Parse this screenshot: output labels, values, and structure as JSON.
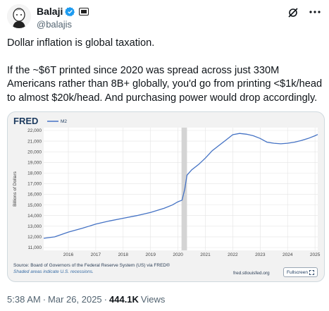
{
  "author": {
    "display_name": "Balaji",
    "handle": "@balajis",
    "verified_color": "#1d9bf0"
  },
  "tweet": {
    "paragraph_1": "Dollar inflation is global taxation.",
    "paragraph_2": "If the ~$6T printed since 2020 was spread across just 330M Americans rather than 8B+ globally, you'd go from printing <$1k/head to almost $20k/head. And purchasing power would drop accordingly."
  },
  "card": {
    "logo": "FRED",
    "source_line": "Source: Board of Governors of the Federal Reserve System (US) via FRED®",
    "shaded_note": "Shaded areas indicate U.S. recessions.",
    "url": "fred.stlouisfed.org",
    "fullscreen_label": "Fullscreen"
  },
  "chart_data": {
    "type": "line",
    "title": "",
    "ylabel": "Billions of Dollars",
    "xlabel": "",
    "ylim": [
      11000,
      22000
    ],
    "xlim": [
      2015.1,
      2025.1
    ],
    "y_ticks": [
      "22,000",
      "21,000",
      "20,000",
      "19,000",
      "18,000",
      "17,000",
      "16,000",
      "15,000",
      "14,000",
      "13,000",
      "12,000",
      "11,000"
    ],
    "x_ticks": [
      "2016",
      "2017",
      "2018",
      "2019",
      "2020",
      "2021",
      "2022",
      "2023",
      "2024",
      "2025"
    ],
    "grid": true,
    "legend_position": "top-left",
    "recession_shading": [
      2020.13,
      2020.33
    ],
    "series": [
      {
        "name": "M2",
        "color": "#4472c4",
        "points": [
          [
            2015.1,
            11870
          ],
          [
            2015.5,
            12000
          ],
          [
            2016.0,
            12450
          ],
          [
            2016.5,
            12800
          ],
          [
            2017.0,
            13200
          ],
          [
            2017.5,
            13500
          ],
          [
            2018.0,
            13750
          ],
          [
            2018.5,
            14000
          ],
          [
            2019.0,
            14300
          ],
          [
            2019.5,
            14700
          ],
          [
            2019.8,
            15000
          ],
          [
            2020.0,
            15300
          ],
          [
            2020.15,
            15450
          ],
          [
            2020.25,
            16500
          ],
          [
            2020.33,
            17800
          ],
          [
            2020.5,
            18300
          ],
          [
            2020.75,
            18800
          ],
          [
            2021.0,
            19400
          ],
          [
            2021.25,
            20100
          ],
          [
            2021.5,
            20600
          ],
          [
            2021.75,
            21100
          ],
          [
            2022.0,
            21600
          ],
          [
            2022.25,
            21720
          ],
          [
            2022.5,
            21650
          ],
          [
            2022.75,
            21500
          ],
          [
            2023.0,
            21250
          ],
          [
            2023.25,
            20900
          ],
          [
            2023.5,
            20800
          ],
          [
            2023.75,
            20750
          ],
          [
            2024.0,
            20800
          ],
          [
            2024.25,
            20900
          ],
          [
            2024.5,
            21050
          ],
          [
            2024.75,
            21250
          ],
          [
            2025.0,
            21500
          ],
          [
            2025.1,
            21620
          ]
        ]
      }
    ]
  },
  "meta": {
    "time": "5:38 AM",
    "separator": "·",
    "date": "Mar 26, 2025",
    "separator_2": "·",
    "views": "444.1K",
    "views_label": "Views"
  }
}
